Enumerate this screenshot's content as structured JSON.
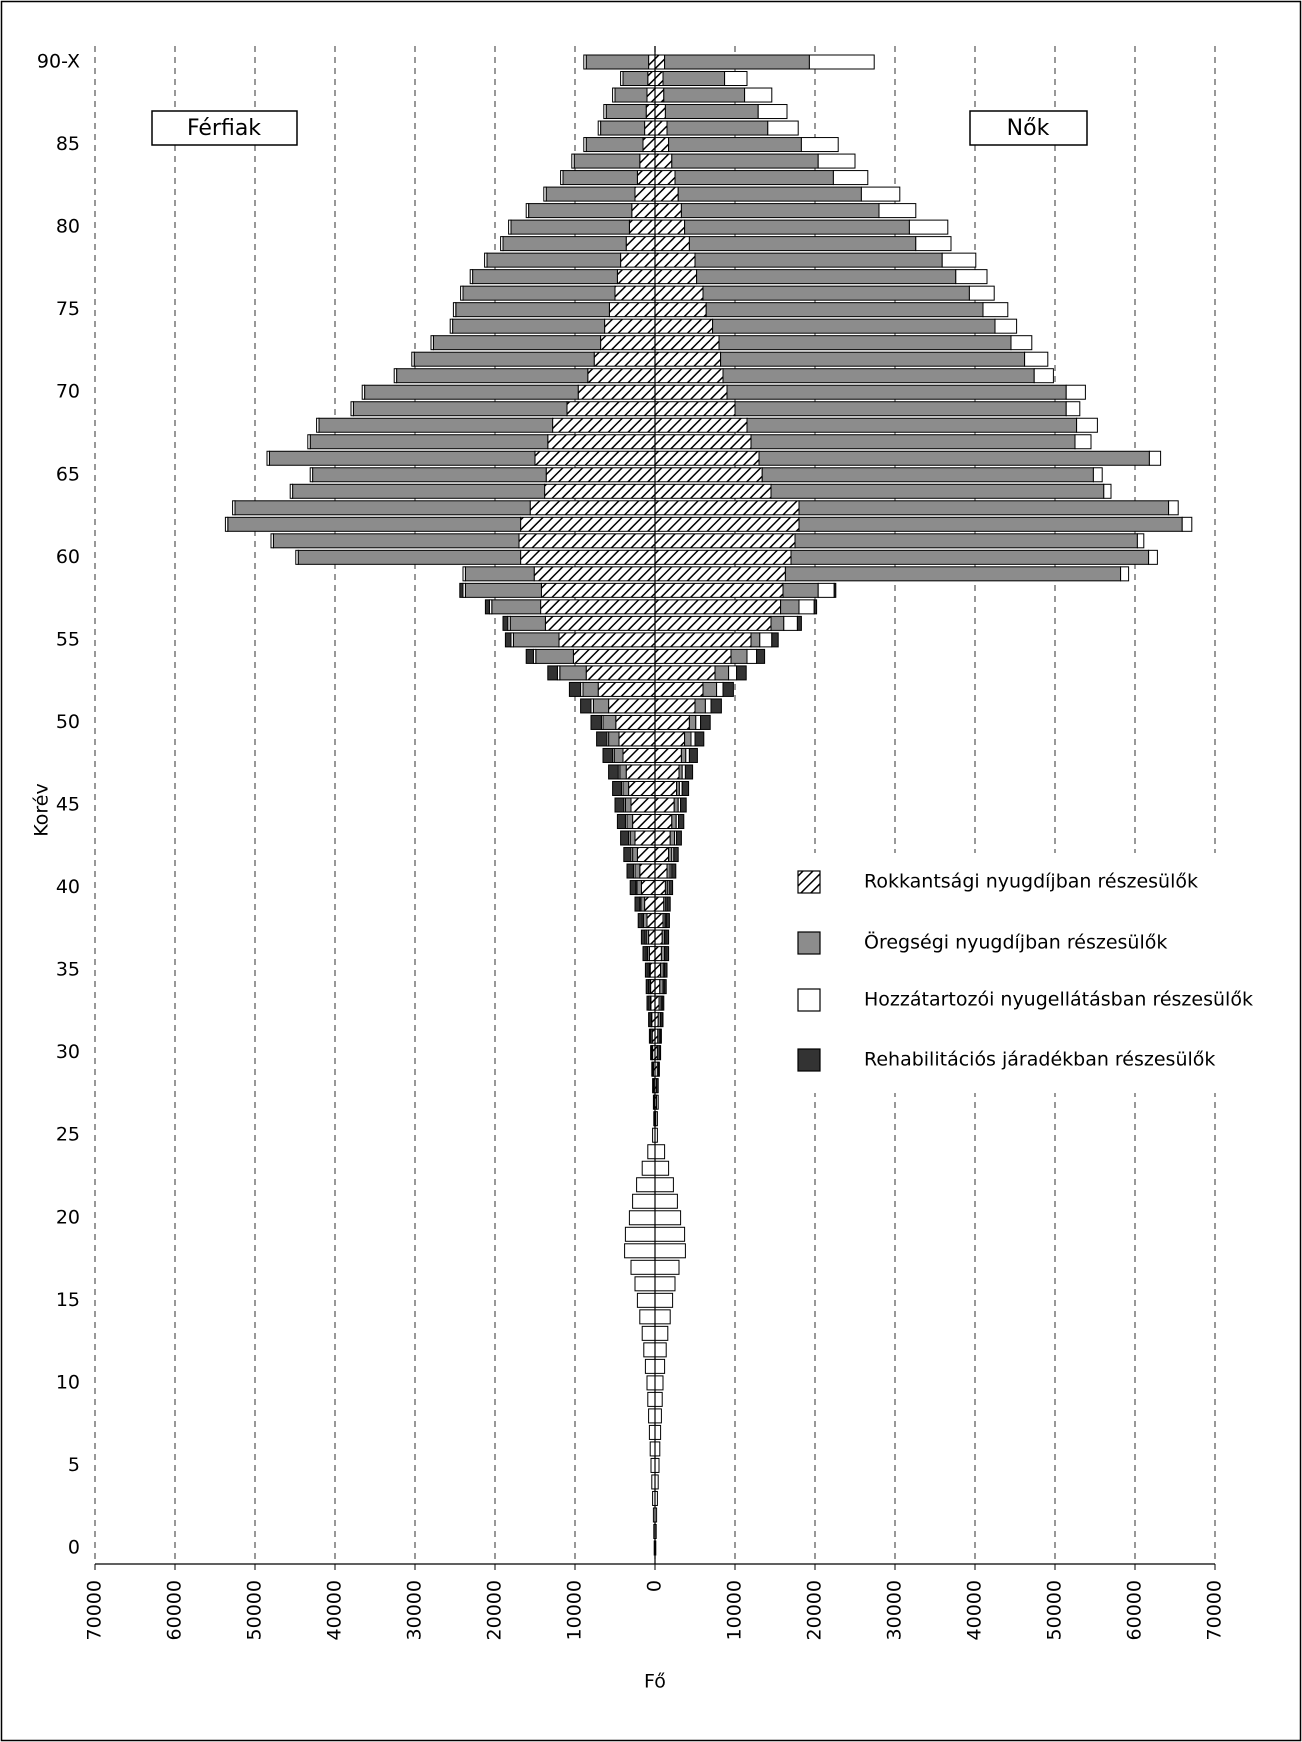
{
  "chart_data": {
    "type": "pyramid",
    "left_label": "Férfiak",
    "right_label": "Nők",
    "xlabel": "Fő",
    "ylabel": "Korév",
    "xlim": [
      -70000,
      70000
    ],
    "xticks": [
      {
        "value": -70000,
        "label": "70000"
      },
      {
        "value": -60000,
        "label": "60000"
      },
      {
        "value": -50000,
        "label": "50000"
      },
      {
        "value": -40000,
        "label": "40000"
      },
      {
        "value": -30000,
        "label": "30000"
      },
      {
        "value": -20000,
        "label": "20000"
      },
      {
        "value": -10000,
        "label": "10000"
      },
      0,
      10000,
      20000,
      30000,
      40000,
      50000,
      60000,
      70000
    ],
    "grid": true,
    "legend_position": "right",
    "categories": [
      "0",
      null,
      null,
      null,
      null,
      "5",
      null,
      null,
      null,
      null,
      "10",
      null,
      null,
      null,
      null,
      "15",
      null,
      null,
      null,
      null,
      "20",
      null,
      null,
      null,
      null,
      "25",
      null,
      null,
      null,
      null,
      "30",
      null,
      null,
      null,
      null,
      "35",
      null,
      null,
      null,
      null,
      "40",
      null,
      null,
      null,
      null,
      "45",
      null,
      null,
      null,
      null,
      "50",
      null,
      null,
      null,
      null,
      "55",
      null,
      null,
      null,
      null,
      "60",
      null,
      null,
      null,
      null,
      "65",
      null,
      null,
      null,
      null,
      "70",
      null,
      null,
      null,
      null,
      "75",
      null,
      null,
      null,
      null,
      "80",
      null,
      null,
      null,
      null,
      "85",
      null,
      null,
      null,
      null,
      "90-X"
    ],
    "series": [
      {
        "name": "Rokkantsági nyugdíjban részesülők",
        "color": "#ffffff",
        "hatch": true,
        "values_men": [
          0,
          0,
          0,
          0,
          0,
          0,
          0,
          0,
          0,
          0,
          0,
          0,
          0,
          0,
          0,
          0,
          0,
          0,
          0,
          0,
          0,
          0,
          0,
          0,
          0,
          0,
          50,
          100,
          150,
          200,
          300,
          350,
          400,
          500,
          550,
          600,
          700,
          800,
          1000,
          1300,
          1700,
          1900,
          2200,
          2500,
          2800,
          3000,
          3300,
          3600,
          4000,
          4500,
          4900,
          5800,
          7100,
          8600,
          10200,
          12000,
          13700,
          14300,
          14200,
          15100,
          16800,
          17000,
          16800,
          15600,
          13800,
          13600,
          15000,
          13400,
          12800,
          11000,
          9600,
          8400,
          7600,
          6800,
          6300,
          5700,
          5000,
          4700,
          4300,
          3600,
          3200,
          2900,
          2500,
          2200,
          1900,
          1500,
          1300,
          1100,
          1000,
          900,
          800
        ],
        "values_women": [
          0,
          0,
          0,
          0,
          0,
          0,
          0,
          0,
          0,
          0,
          0,
          0,
          0,
          0,
          0,
          0,
          0,
          0,
          0,
          0,
          0,
          0,
          0,
          0,
          0,
          0,
          100,
          200,
          200,
          300,
          300,
          350,
          400,
          500,
          600,
          700,
          800,
          900,
          1000,
          1100,
          1300,
          1500,
          1700,
          1900,
          2100,
          2400,
          2700,
          3000,
          3300,
          3700,
          4300,
          5000,
          6000,
          7500,
          9500,
          12000,
          14500,
          15700,
          16000,
          16300,
          17000,
          17500,
          18000,
          18000,
          14500,
          13400,
          13000,
          12000,
          11500,
          10000,
          9000,
          8500,
          8200,
          8000,
          7200,
          6400,
          6000,
          5200,
          5000,
          4300,
          3700,
          3300,
          2900,
          2500,
          2100,
          1700,
          1500,
          1300,
          1100,
          1000,
          1200
        ]
      },
      {
        "name": "Öregségi nyugdíjban részesülők",
        "color": "#8c8c8c",
        "hatch": false,
        "values_men": [
          0,
          0,
          0,
          0,
          0,
          0,
          0,
          0,
          0,
          0,
          0,
          0,
          0,
          0,
          0,
          0,
          0,
          0,
          0,
          0,
          0,
          0,
          0,
          0,
          0,
          0,
          0,
          0,
          0,
          0,
          50,
          50,
          50,
          100,
          100,
          100,
          250,
          300,
          450,
          450,
          550,
          600,
          600,
          600,
          700,
          700,
          700,
          800,
          1100,
          1300,
          1600,
          1900,
          1900,
          3300,
          4700,
          5700,
          4400,
          6100,
          9500,
          8600,
          27800,
          30700,
          36600,
          36900,
          31500,
          29200,
          33200,
          29700,
          29200,
          26700,
          26700,
          23900,
          22500,
          20900,
          19000,
          19200,
          19000,
          18100,
          16700,
          15400,
          14800,
          12900,
          11100,
          9300,
          8200,
          7100,
          5500,
          5000,
          4000,
          3100,
          7800
        ],
        "values_women": [
          0,
          0,
          0,
          0,
          0,
          0,
          0,
          0,
          0,
          0,
          0,
          0,
          0,
          0,
          0,
          0,
          0,
          0,
          0,
          0,
          0,
          0,
          0,
          0,
          0,
          0,
          0,
          0,
          0,
          0,
          200,
          200,
          300,
          250,
          400,
          350,
          400,
          300,
          250,
          250,
          250,
          400,
          400,
          550,
          550,
          500,
          350,
          400,
          550,
          800,
          800,
          1300,
          1700,
          1700,
          2000,
          1100,
          1600,
          2300,
          4400,
          41900,
          44700,
          42800,
          47900,
          46200,
          41600,
          41400,
          48800,
          40500,
          41200,
          41400,
          42400,
          38900,
          38000,
          36500,
          35300,
          34600,
          33300,
          32400,
          30900,
          28300,
          28100,
          24700,
          22900,
          19800,
          18300,
          16600,
          12600,
          11600,
          10100,
          7700,
          18100
        ]
      },
      {
        "name": "Hozzátartozói nyugellátásban részesülők",
        "color": "#ffffff",
        "hatch": false,
        "values_men": [
          100,
          150,
          200,
          300,
          400,
          500,
          600,
          700,
          800,
          900,
          1000,
          1200,
          1400,
          1600,
          1900,
          2200,
          2500,
          3000,
          3800,
          3700,
          3200,
          2800,
          2300,
          1600,
          900,
          300,
          100,
          100,
          100,
          100,
          100,
          150,
          150,
          150,
          150,
          150,
          150,
          150,
          150,
          150,
          150,
          200,
          200,
          200,
          200,
          200,
          200,
          200,
          200,
          200,
          200,
          300,
          300,
          300,
          300,
          300,
          300,
          300,
          300,
          300,
          300,
          300,
          300,
          300,
          300,
          300,
          300,
          300,
          300,
          300,
          300,
          300,
          300,
          300,
          300,
          300,
          300,
          300,
          300,
          300,
          300,
          300,
          300,
          300,
          300,
          300,
          300,
          300,
          300,
          300,
          300
        ],
        "values_women": [
          100,
          150,
          200,
          300,
          400,
          500,
          600,
          700,
          800,
          900,
          1000,
          1200,
          1400,
          1600,
          1900,
          2200,
          2500,
          3000,
          3800,
          3700,
          3200,
          2800,
          2300,
          1700,
          1200,
          300,
          200,
          200,
          150,
          150,
          150,
          150,
          150,
          150,
          150,
          150,
          150,
          150,
          150,
          150,
          200,
          200,
          250,
          250,
          300,
          300,
          350,
          400,
          450,
          500,
          600,
          700,
          800,
          1000,
          1200,
          1500,
          1700,
          1900,
          2000,
          1000,
          1100,
          800,
          1200,
          1200,
          900,
          1100,
          1400,
          2000,
          2600,
          1700,
          2400,
          2400,
          2900,
          2600,
          2700,
          3100,
          3100,
          3900,
          4200,
          4400,
          4800,
          4600,
          4800,
          4300,
          4600,
          4600,
          3800,
          3600,
          3400,
          2800,
          8100
        ]
      },
      {
        "name": "Rehabilitációs járadékban részesülők",
        "color": "#333333",
        "hatch": false,
        "values_men": [
          0,
          0,
          0,
          0,
          0,
          0,
          0,
          0,
          0,
          0,
          0,
          0,
          0,
          0,
          0,
          0,
          0,
          0,
          0,
          0,
          0,
          0,
          0,
          0,
          0,
          0,
          0,
          0,
          50,
          100,
          100,
          150,
          200,
          250,
          300,
          350,
          400,
          450,
          500,
          600,
          700,
          800,
          900,
          1000,
          1000,
          1100,
          1100,
          1200,
          1200,
          1300,
          1300,
          1300,
          1400,
          1200,
          900,
          700,
          600,
          500,
          400,
          0,
          0,
          0,
          0,
          0,
          0,
          0,
          0,
          0,
          0,
          0,
          0,
          0,
          0,
          0,
          0,
          0,
          0,
          0,
          0,
          0,
          0,
          0,
          0,
          0,
          0,
          0,
          0,
          0,
          0,
          0,
          0
        ],
        "values_women": [
          0,
          0,
          0,
          0,
          0,
          0,
          0,
          0,
          0,
          0,
          0,
          0,
          0,
          0,
          0,
          0,
          0,
          0,
          0,
          0,
          0,
          0,
          0,
          0,
          0,
          0,
          0,
          0,
          50,
          100,
          50,
          100,
          150,
          200,
          250,
          300,
          350,
          350,
          400,
          400,
          450,
          500,
          550,
          600,
          650,
          700,
          800,
          900,
          1000,
          1100,
          1200,
          1300,
          1300,
          1200,
          1000,
          800,
          500,
          300,
          200,
          0,
          0,
          0,
          0,
          0,
          0,
          0,
          0,
          0,
          0,
          0,
          0,
          0,
          0,
          0,
          0,
          0,
          0,
          0,
          0,
          0,
          0,
          0,
          0,
          0,
          0,
          0,
          0,
          0,
          0,
          0,
          0
        ]
      }
    ]
  }
}
